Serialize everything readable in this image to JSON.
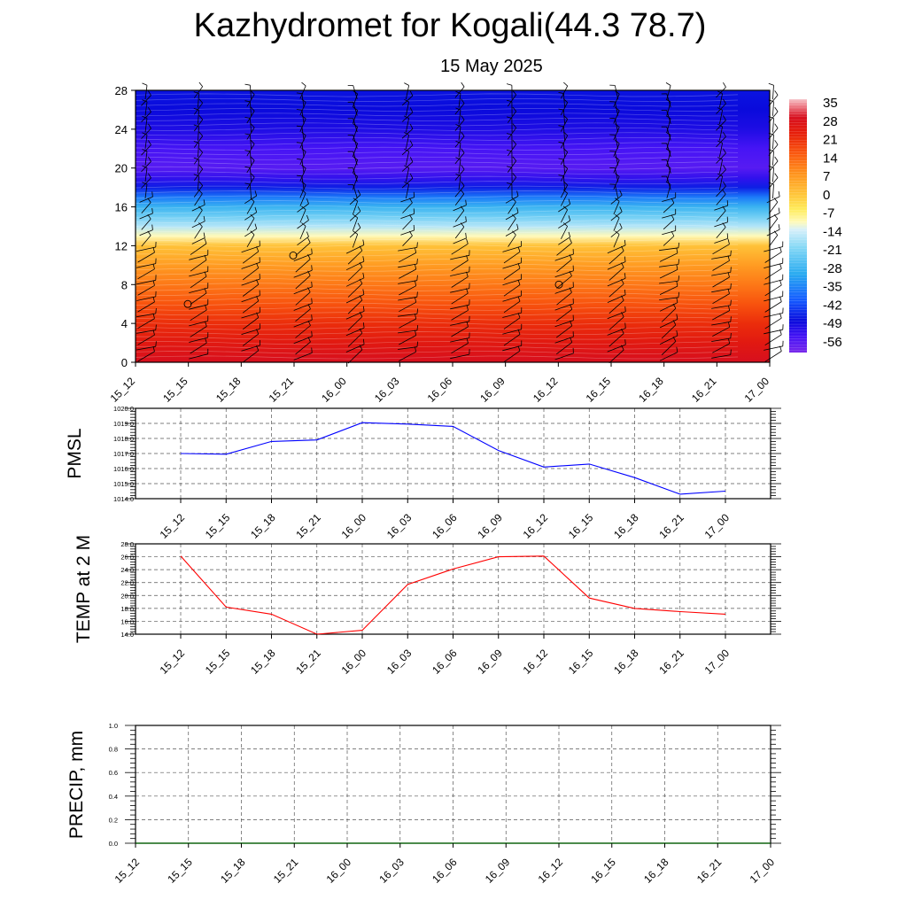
{
  "header": {
    "title": "Kazhydromet for Kogali(44.3 78.7)",
    "date": "15 May 2025"
  },
  "colors": {
    "pmsl_line": "#0000ff",
    "temp_line": "#ff0000",
    "precip_line": "#006400",
    "grid": "#555555",
    "barb": "#000000"
  },
  "chart_data": [
    {
      "type": "heatmap",
      "title": "",
      "xlabel": "",
      "ylabel": "",
      "x_tick_labels": [
        "15_12",
        "15_15",
        "15_18",
        "15_21",
        "16_00",
        "16_03",
        "16_06",
        "16_09",
        "16_12",
        "16_15",
        "16_18",
        "16_21",
        "17_00"
      ],
      "y_ticks": [
        0,
        4,
        8,
        12,
        16,
        20,
        24,
        28
      ],
      "ylim": [
        0,
        28
      ],
      "colorbar_labels": [
        "35",
        "28",
        "21",
        "14",
        "7",
        "0",
        "-7",
        "-14",
        "-21",
        "-28",
        "-35",
        "-42",
        "-49",
        "-56"
      ],
      "colorbar_range": [
        -60,
        37
      ],
      "temperature_profile": {
        "levels": [
          0,
          2,
          4,
          6,
          8,
          10,
          12,
          13,
          14,
          15,
          16,
          17,
          18,
          19,
          20,
          22,
          24,
          26,
          28
        ],
        "values": [
          30,
          26,
          22,
          17,
          12,
          7,
          1,
          -10,
          -16,
          -22,
          -28,
          -36,
          -46,
          -52,
          -56,
          -54,
          -50,
          -48,
          -47
        ]
      },
      "overlay": "wind barbs"
    },
    {
      "type": "line",
      "ylabel": "PMSL",
      "x": [
        "15_12",
        "15_15",
        "15_18",
        "15_21",
        "16_00",
        "16_03",
        "16_06",
        "16_09",
        "16_12",
        "16_15",
        "16_18",
        "16_21",
        "17_00"
      ],
      "y_ticks": [
        "1014.0",
        "1015.0",
        "1016.0",
        "1017.0",
        "1018.0",
        "1019.0",
        "1020.0"
      ],
      "ylim": [
        1014,
        1020
      ],
      "grid": true,
      "series": [
        {
          "values": [
            1017.0,
            1016.95,
            1017.8,
            1017.9,
            1019.05,
            1018.95,
            1018.8,
            1017.2,
            1016.1,
            1016.3,
            1015.4,
            1014.3,
            1014.5
          ]
        }
      ]
    },
    {
      "type": "line",
      "ylabel": "TEMP at 2 M",
      "x": [
        "15_12",
        "15_15",
        "15_18",
        "15_21",
        "16_00",
        "16_03",
        "16_06",
        "16_09",
        "16_12",
        "16_15",
        "16_18",
        "16_21",
        "17_00"
      ],
      "y_ticks": [
        "14.0",
        "16.0",
        "18.0",
        "20.0",
        "22.0",
        "24.0",
        "26.0",
        "28.0"
      ],
      "ylim": [
        14,
        28
      ],
      "grid": true,
      "series": [
        {
          "values": [
            26.1,
            18.2,
            17.1,
            14.0,
            14.6,
            21.7,
            24.1,
            26.0,
            26.1,
            19.6,
            18.0,
            17.5,
            17.1
          ]
        }
      ]
    },
    {
      "type": "line",
      "ylabel": "PRECIP, mm",
      "x": [
        "15_12",
        "15_15",
        "15_18",
        "15_21",
        "16_00",
        "16_03",
        "16_06",
        "16_09",
        "16_12",
        "16_15",
        "16_18",
        "16_21",
        "17_00"
      ],
      "y_ticks": [
        "0.0",
        "0.2",
        "0.4",
        "0.6",
        "0.8",
        "1.0"
      ],
      "ylim": [
        0,
        1
      ],
      "grid": true,
      "series": [
        {
          "values": [
            0,
            0,
            0,
            0,
            0,
            0,
            0,
            0,
            0,
            0,
            0,
            0,
            0
          ]
        }
      ]
    }
  ]
}
